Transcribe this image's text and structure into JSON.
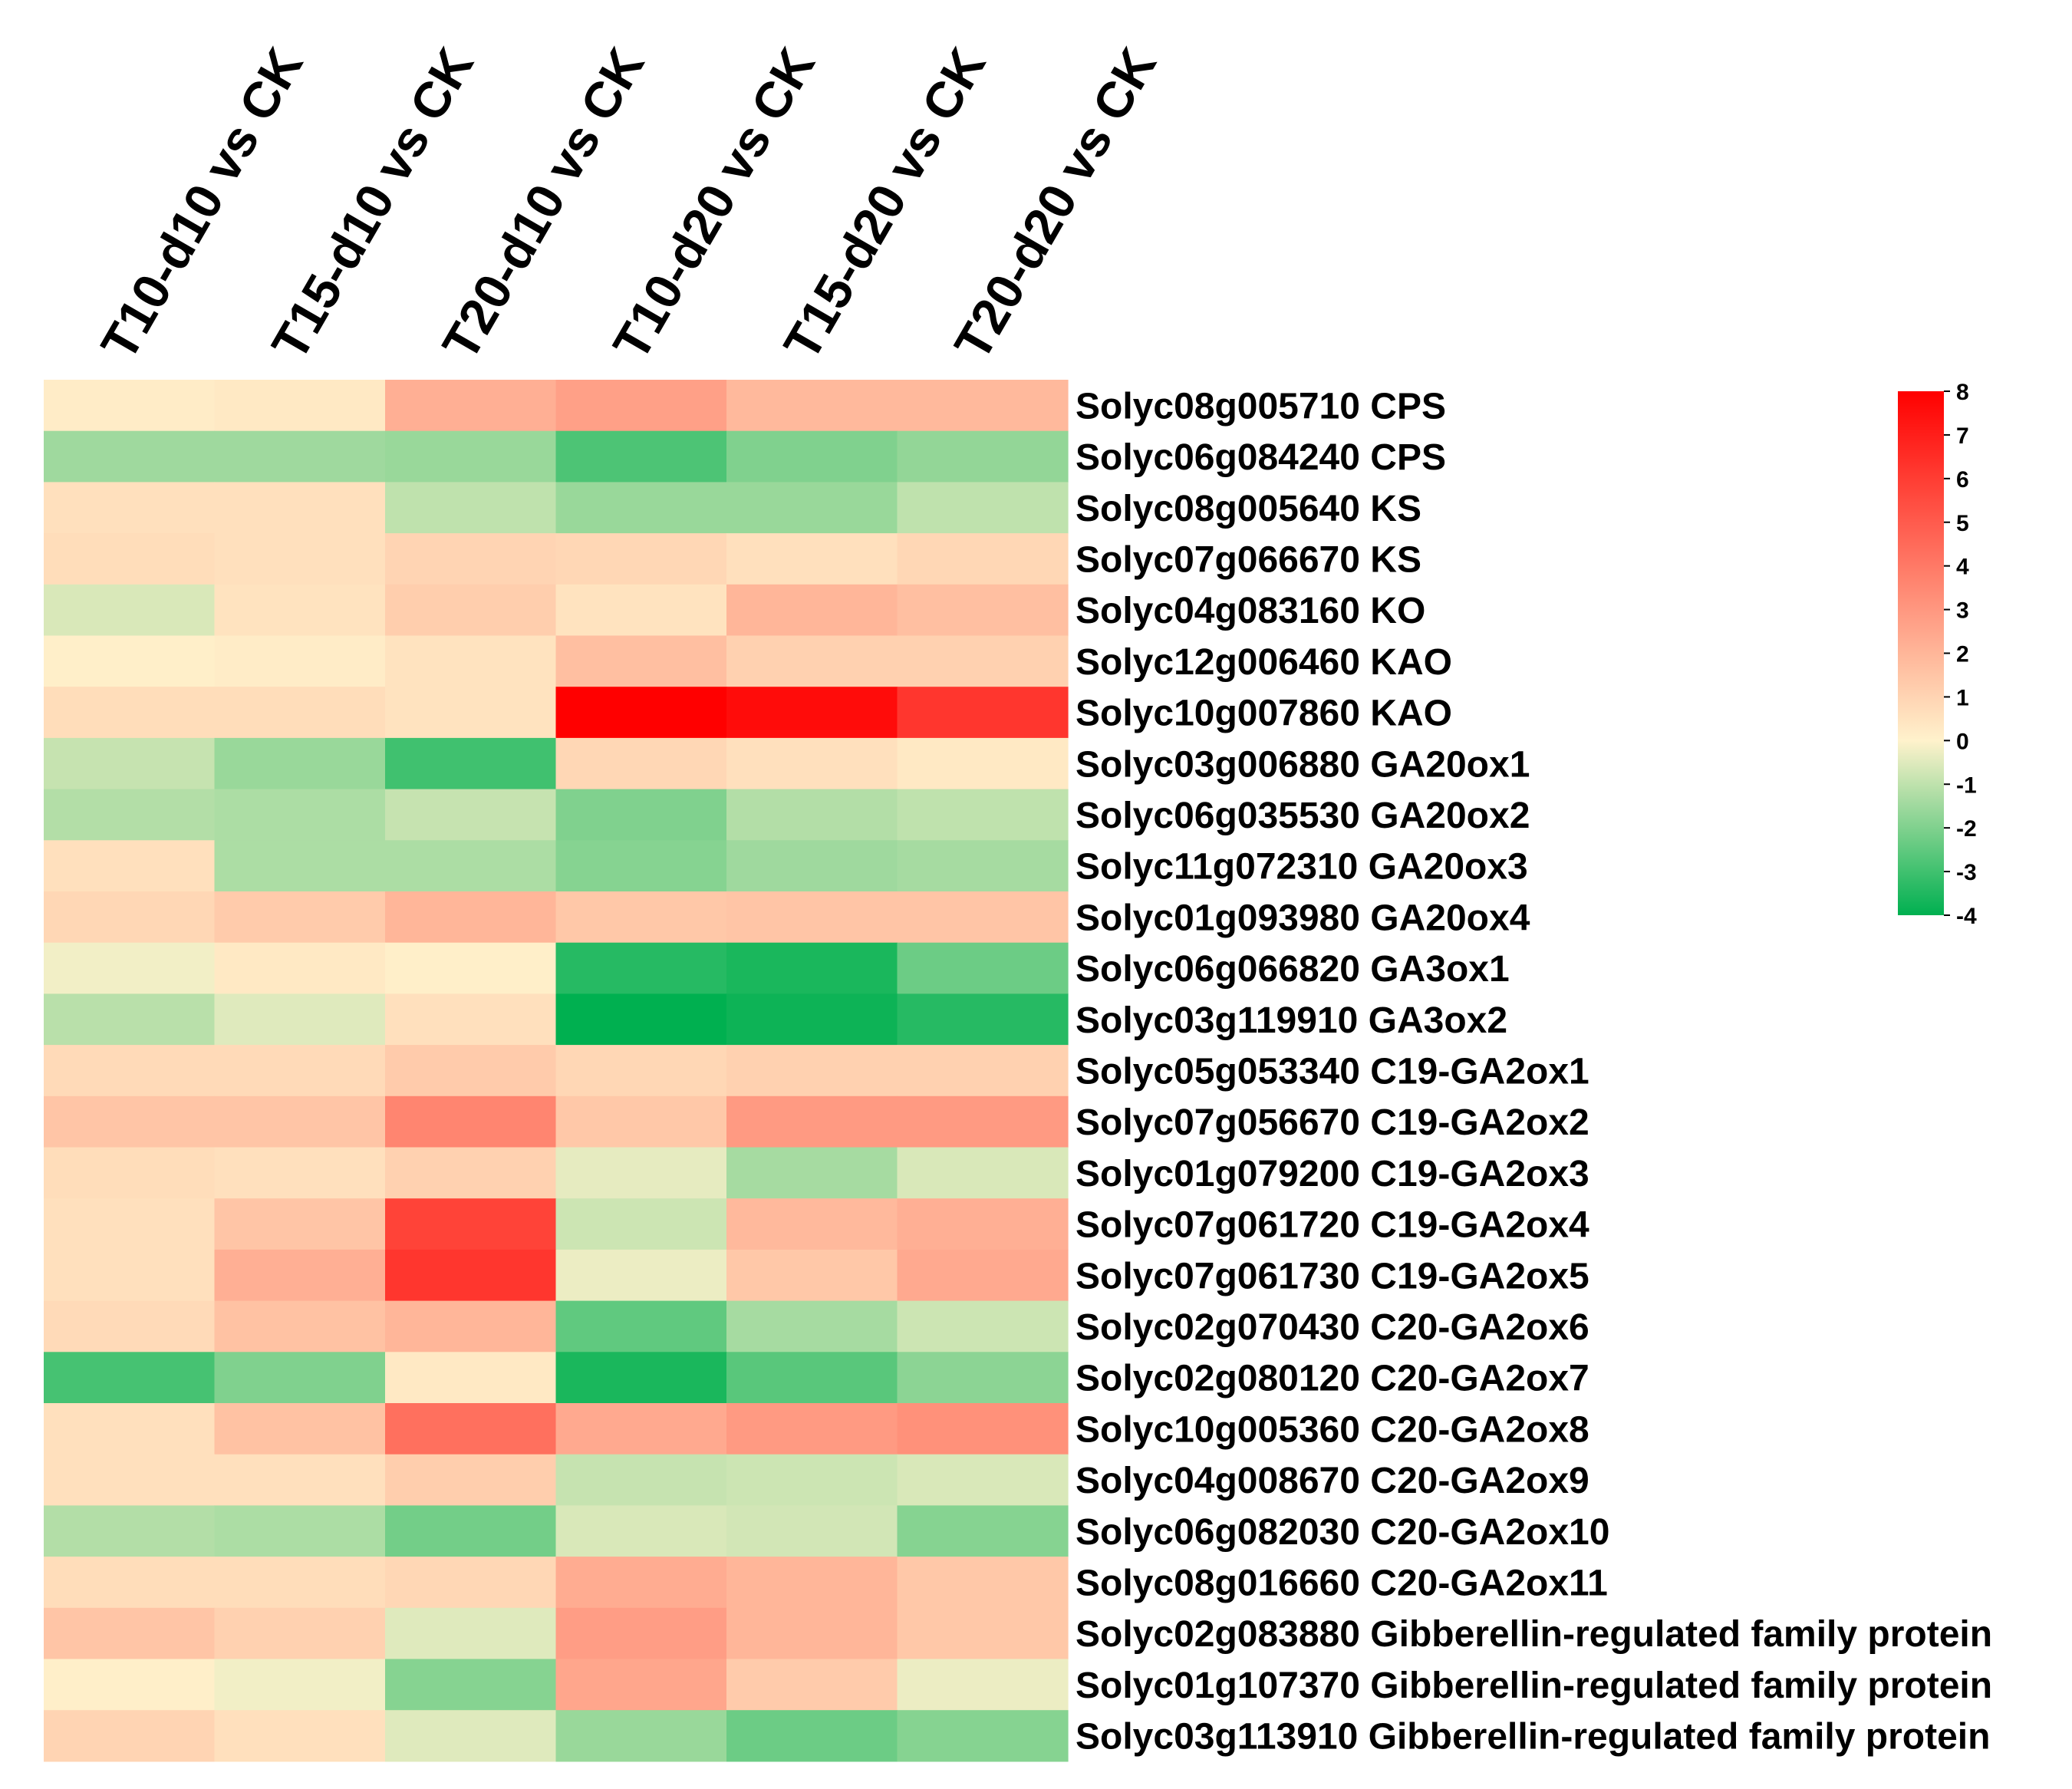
{
  "chart_data": {
    "type": "heatmap",
    "title": "",
    "columns": [
      "T10-d10 vs CK",
      "T15-d10 vs CK",
      "T20-d10 vs CK",
      "T10-d20 vs CK",
      "T15-d20 vs CK",
      "T20-d20 vs CK"
    ],
    "rows": [
      "Solyc08g005710 CPS",
      "Solyc06g084240 CPS",
      "Solyc08g005640 KS",
      "Solyc07g066670 KS",
      "Solyc04g083160 KO",
      "Solyc12g006460 KAO",
      "Solyc10g007860 KAO",
      "Solyc03g006880 GA20ox1",
      "Solyc06g035530 GA20ox2",
      "Solyc11g072310 GA20ox3",
      "Solyc01g093980 GA20ox4",
      "Solyc06g066820 GA3ox1",
      "Solyc03g119910 GA3ox2",
      "Solyc05g053340 C19-GA2ox1",
      "Solyc07g056670 C19-GA2ox2",
      "Solyc01g079200 C19-GA2ox3",
      "Solyc07g061720 C19-GA2ox4",
      "Solyc07g061730 C19-GA2ox5",
      "Solyc02g070430 C20-GA2ox6",
      "Solyc02g080120 C20-GA2ox7",
      "Solyc10g005360 C20-GA2ox8",
      "Solyc04g008670 C20-GA2ox9",
      "Solyc06g082030 C20-GA2ox10",
      "Solyc08g016660 C20-GA2ox11",
      "Solyc02g083880 Gibberellin-regulated family protein",
      "Solyc01g107370 Gibberellin-regulated family protein",
      "Solyc03g113910 Gibberellin-regulated family protein"
    ],
    "values": [
      [
        0.2,
        0.3,
        2.2,
        2.7,
        1.9,
        1.9
      ],
      [
        -1.5,
        -1.5,
        -1.6,
        -2.8,
        -2.0,
        -1.7
      ],
      [
        0.6,
        0.6,
        -1.0,
        -1.6,
        -1.6,
        -1.0
      ],
      [
        0.7,
        0.6,
        1.0,
        0.9,
        0.6,
        0.9
      ],
      [
        -0.6,
        0.5,
        1.2,
        0.5,
        2.0,
        1.7
      ],
      [
        0.1,
        0.2,
        0.5,
        1.7,
        1.1,
        1.1
      ],
      [
        0.7,
        0.7,
        0.5,
        8.0,
        7.6,
        6.2
      ],
      [
        -0.9,
        -1.6,
        -3.0,
        0.9,
        0.6,
        0.3
      ],
      [
        -1.2,
        -1.3,
        -0.9,
        -2.0,
        -1.2,
        -1.0
      ],
      [
        0.6,
        -1.3,
        -1.3,
        -1.9,
        -1.5,
        -1.4
      ],
      [
        0.9,
        1.3,
        2.0,
        1.4,
        1.5,
        1.5
      ],
      [
        -0.2,
        0.3,
        0.1,
        -3.4,
        -3.6,
        -2.3
      ],
      [
        -1.1,
        -0.5,
        0.6,
        -4.0,
        -3.8,
        -3.4
      ],
      [
        0.8,
        0.8,
        1.3,
        0.9,
        1.1,
        1.1
      ],
      [
        1.5,
        1.5,
        3.6,
        1.4,
        2.9,
        2.9
      ],
      [
        0.7,
        0.6,
        1.1,
        -0.4,
        -1.4,
        -0.6
      ],
      [
        0.6,
        1.5,
        5.8,
        -0.8,
        1.9,
        2.2
      ],
      [
        0.6,
        2.2,
        6.2,
        -0.3,
        1.4,
        2.4
      ],
      [
        0.8,
        1.6,
        2.0,
        -2.5,
        -1.4,
        -0.8
      ],
      [
        -2.9,
        -2.0,
        0.3,
        -3.6,
        -2.6,
        -1.8
      ],
      [
        0.6,
        1.6,
        4.3,
        2.4,
        2.9,
        3.2
      ],
      [
        0.6,
        0.6,
        1.2,
        -0.9,
        -0.8,
        -0.6
      ],
      [
        -1.2,
        -1.3,
        -2.2,
        -0.6,
        -0.7,
        -1.9
      ],
      [
        0.7,
        0.7,
        0.9,
        2.3,
        2.0,
        1.4
      ],
      [
        1.5,
        1.1,
        -0.5,
        2.8,
        2.0,
        1.4
      ],
      [
        0.1,
        -0.2,
        -1.9,
        2.5,
        1.3,
        -0.3
      ],
      [
        1.0,
        0.6,
        -0.5,
        -1.6,
        -2.3,
        -1.9
      ]
    ],
    "colorbar": {
      "min": -4,
      "max": 8,
      "ticks": [
        "8",
        "7",
        "6",
        "5",
        "4",
        "3",
        "2",
        "1",
        "0",
        "-1",
        "-2",
        "-3",
        "-4"
      ],
      "colors": {
        "low": "#00b050",
        "mid": "#fff2cc",
        "high": "#ff0000"
      }
    }
  }
}
